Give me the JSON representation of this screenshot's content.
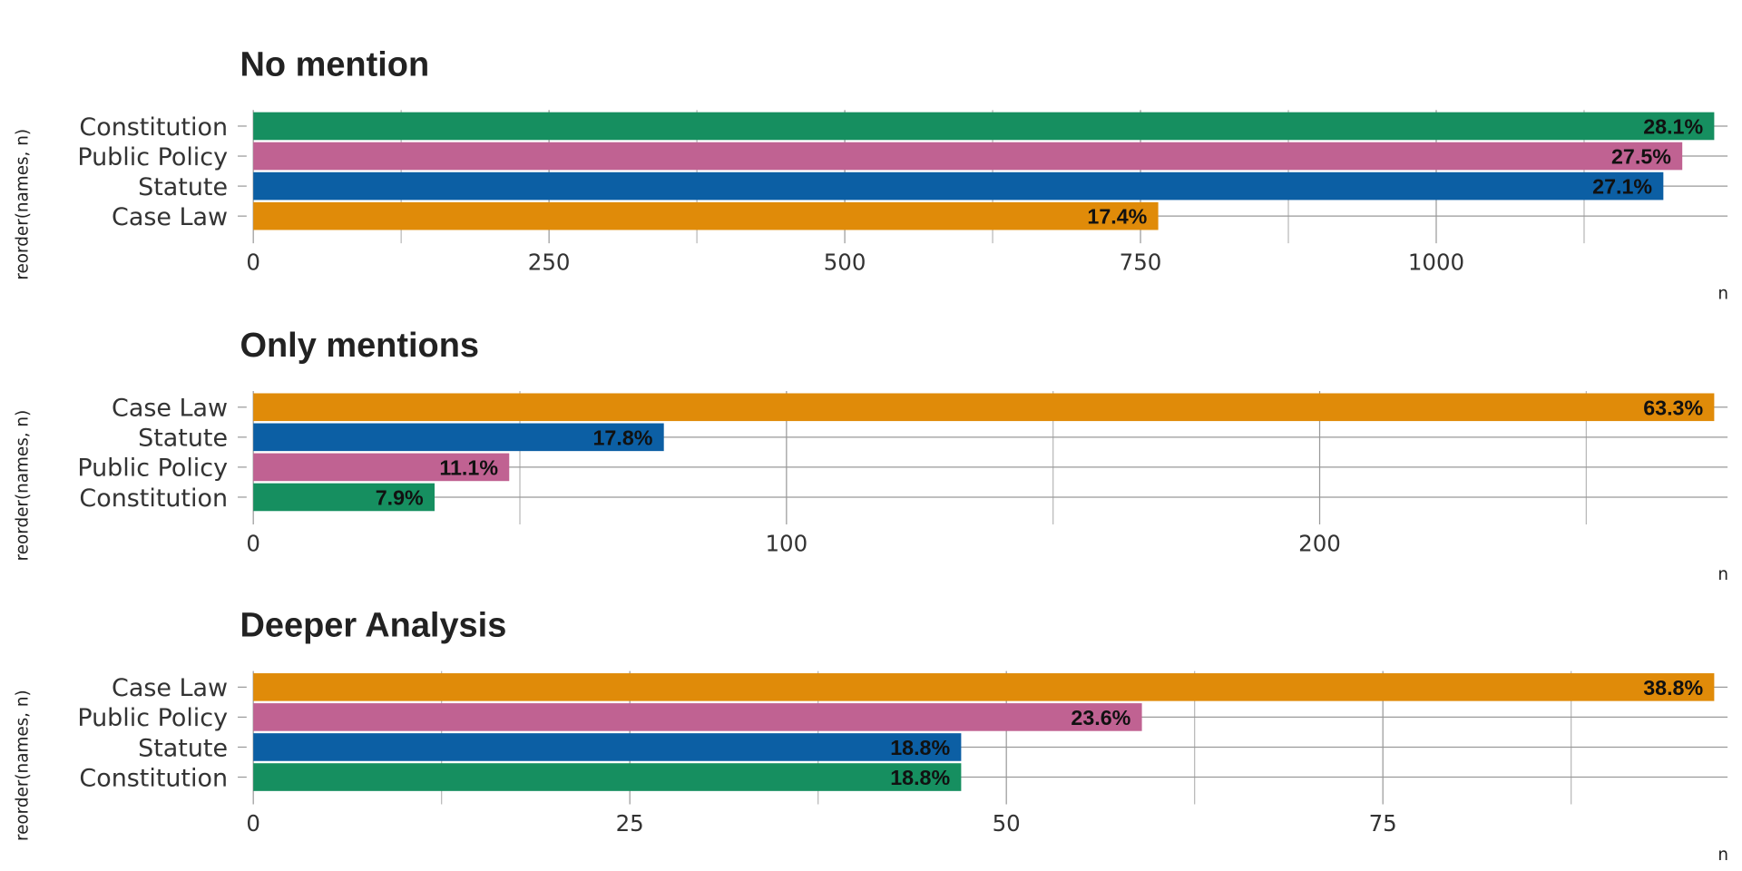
{
  "chart_data": [
    {
      "type": "bar",
      "orientation": "horizontal",
      "title": "No mention",
      "xlabel": "n",
      "ylabel": "reorder(names, n)",
      "categories": [
        "Constitution",
        "Public Policy",
        "Statute",
        "Case Law"
      ],
      "values": [
        1235,
        1208,
        1192,
        765
      ],
      "labels": [
        "28.1%",
        "27.5%",
        "27.1%",
        "17.4%"
      ],
      "xticks": [
        0,
        250,
        500,
        750,
        1000
      ],
      "xtick_labels": [
        "0",
        "250",
        "500",
        "750",
        "1000"
      ],
      "xlim": [
        0,
        1235
      ],
      "grid": true
    },
    {
      "type": "bar",
      "orientation": "horizontal",
      "title": "Only mentions",
      "xlabel": "n",
      "ylabel": "reorder(names, n)",
      "categories": [
        "Case Law",
        "Statute",
        "Public Policy",
        "Constitution"
      ],
      "values": [
        274,
        77,
        48,
        34
      ],
      "labels": [
        "63.3%",
        "17.8%",
        "11.1%",
        "7.9%"
      ],
      "xticks": [
        0,
        100,
        200
      ],
      "xtick_labels": [
        "0",
        "100",
        "200"
      ],
      "xlim": [
        0,
        274
      ],
      "grid": true
    },
    {
      "type": "bar",
      "orientation": "horizontal",
      "title": "Deeper Analysis",
      "xlabel": "n",
      "ylabel": "reorder(names, n)",
      "categories": [
        "Case Law",
        "Public Policy",
        "Statute",
        "Constitution"
      ],
      "values": [
        97,
        59,
        47,
        47
      ],
      "labels": [
        "38.8%",
        "23.6%",
        "18.8%",
        "18.8%"
      ],
      "xticks": [
        0,
        25,
        50,
        75
      ],
      "xtick_labels": [
        "0",
        "25",
        "50",
        "75"
      ],
      "xlim": [
        0,
        97
      ],
      "grid": true
    }
  ],
  "colors": {
    "Constitution": "#168f60",
    "Public Policy": "#c06292",
    "Statute": "#0c5fa4",
    "Case Law": "#e08b09"
  }
}
